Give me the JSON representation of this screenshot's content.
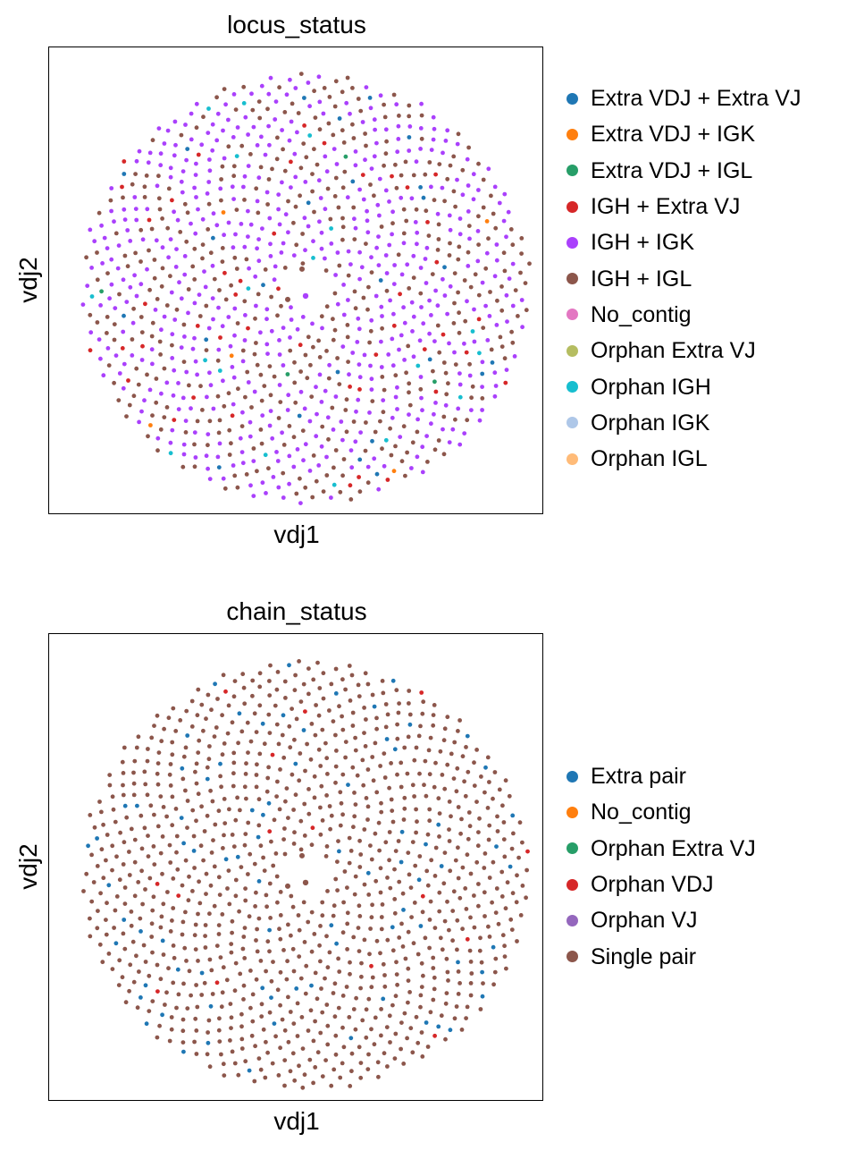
{
  "chart_data": [
    {
      "type": "scatter",
      "title": "locus_status",
      "xlabel": "vdj1",
      "ylabel": "vdj2",
      "xticks": [],
      "yticks": [],
      "layout": "disc of evenly spaced points",
      "legend": "right",
      "point_count": 1100,
      "seed": 7,
      "legend_entries": [
        {
          "name": "Extra VDJ + Extra VJ",
          "color": "#1f77b4",
          "count": 25
        },
        {
          "name": "Extra VDJ + IGK",
          "color": "#ff7f0e",
          "count": 5
        },
        {
          "name": "Extra VDJ + IGL",
          "color": "#279e68",
          "count": 4
        },
        {
          "name": "IGH + Extra VJ",
          "color": "#d62728",
          "count": 45
        },
        {
          "name": "IGH + IGK",
          "color": "#aa40fc",
          "count": 560
        },
        {
          "name": "IGH + IGL",
          "color": "#8c564b",
          "count": 443
        },
        {
          "name": "No_contig",
          "color": "#e377c2",
          "count": 0
        },
        {
          "name": "Orphan Extra VJ",
          "color": "#b5bd61",
          "count": 0
        },
        {
          "name": "Orphan IGH",
          "color": "#17becf",
          "count": 18
        },
        {
          "name": "Orphan IGK",
          "color": "#aec7e8",
          "count": 0
        },
        {
          "name": "Orphan IGL",
          "color": "#ffbb78",
          "count": 0
        }
      ]
    },
    {
      "type": "scatter",
      "title": "chain_status",
      "xlabel": "vdj1",
      "ylabel": "vdj2",
      "xticks": [],
      "yticks": [],
      "layout": "disc of evenly spaced points",
      "legend": "right",
      "point_count": 1100,
      "seed": 11,
      "legend_entries": [
        {
          "name": "Extra pair",
          "color": "#1f77b4",
          "count": 80
        },
        {
          "name": "No_contig",
          "color": "#ff7f0e",
          "count": 0
        },
        {
          "name": "Orphan Extra VJ",
          "color": "#279e68",
          "count": 0
        },
        {
          "name": "Orphan VDJ",
          "color": "#d62728",
          "count": 15
        },
        {
          "name": "Orphan VJ",
          "color": "#9467bd",
          "count": 0
        },
        {
          "name": "Single pair",
          "color": "#8c564b",
          "count": 1005
        }
      ]
    }
  ]
}
